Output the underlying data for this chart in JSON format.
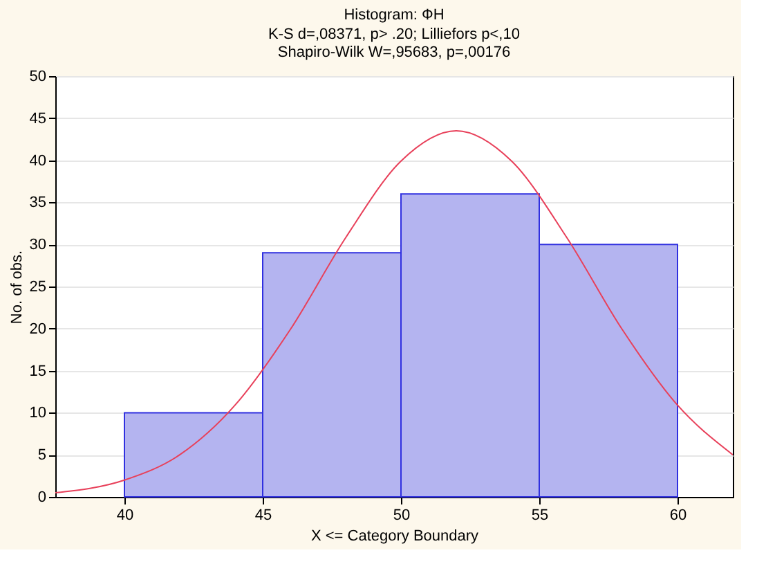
{
  "chart_data": {
    "type": "histogram",
    "title": "Histogram: ФН",
    "subtitle": "K-S d=,08371, p> .20; Lilliefors p<,10\nShapiro-Wilk W=,95683, p=,00176",
    "xlabel": "X <= Category Boundary",
    "ylabel": "No. of obs.",
    "bins": [
      40,
      45,
      50,
      55,
      60
    ],
    "values": [
      10,
      29,
      36,
      30
    ],
    "color": "#b4b4f0",
    "series": [
      {
        "type": "line",
        "color": "#e8405a",
        "x": [
          37.5,
          40,
          42,
          44,
          46,
          48,
          50,
          52,
          54,
          56,
          58,
          60,
          62
        ],
        "values": [
          0.5,
          2,
          5,
          10.9,
          19.9,
          30.8,
          39.9,
          43.5,
          39.9,
          30.8,
          19.9,
          10.9,
          5
        ]
      }
    ],
    "xlim": [
      37.5,
      62
    ],
    "xticks": [
      40,
      45,
      50,
      55,
      60
    ],
    "ylim": [
      0,
      50
    ],
    "yticks": [
      0,
      5,
      10,
      15,
      20,
      25,
      30,
      35,
      40,
      45,
      50
    ],
    "grid": "y"
  }
}
